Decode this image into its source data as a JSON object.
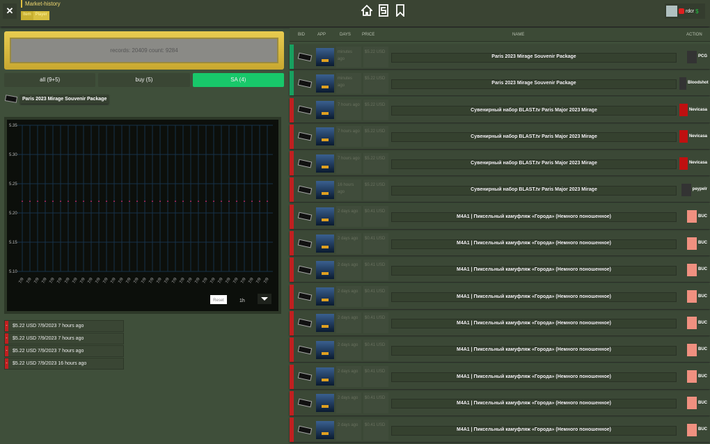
{
  "header": {
    "title": "Market-history",
    "subtabs": [
      "Item",
      "Player"
    ],
    "user": {
      "name": "rdcr",
      "currency": "$"
    },
    "colors": {
      "accent_gold": "#e0c040",
      "active_green": "#18c86a",
      "sell_red": "#c02020",
      "buy_green": "#18a060"
    }
  },
  "left": {
    "summary": "records: 20409 count: 9284",
    "tabs": [
      {
        "label": "all (9+5)"
      },
      {
        "label": "buy (5)"
      },
      {
        "label": "SA (4)"
      }
    ],
    "selected_item": "Paris 2023 Mirage Souvenir Package",
    "history": [
      "$5.22 USD 7/9/2023 7 hours ago",
      "$5.22 USD 7/9/2023 7 hours ago",
      "$5.22 USD 7/9/2023 7 hours ago",
      "$5.22 USD 7/9/2023 16 hours ago"
    ]
  },
  "chart_data": {
    "type": "line",
    "y_ticks": [
      "5.35",
      "5.30",
      "5.25",
      "5.20",
      "5.15",
      "5.10"
    ],
    "ylim": [
      5.1,
      5.35
    ],
    "grid": true,
    "x_count": 33,
    "values_constant": 5.22,
    "series": [
      {
        "values": [
          5.22,
          5.22,
          5.22,
          5.22,
          5.22,
          5.22,
          5.22,
          5.22,
          5.22,
          5.22,
          5.22,
          5.22,
          5.22,
          5.22,
          5.22,
          5.22,
          5.22,
          5.22,
          5.22,
          5.22,
          5.22,
          5.22,
          5.22,
          5.22,
          5.22,
          5.22,
          5.22,
          5.22,
          5.22,
          5.22,
          5.22,
          5.22,
          5.22
        ]
      }
    ],
    "controls": {
      "reset_label": "Reset",
      "range_label": "1h"
    }
  },
  "table": {
    "columns": [
      "BID",
      "APP",
      "DAYS",
      "PRICE",
      "NAME",
      "ACTION"
    ],
    "rows": [
      {
        "side": "buy",
        "days": "minutes ago",
        "price": "$5.22 USD",
        "name": "Paris 2023 Mirage Souvenir Package",
        "user": "PCG"
      },
      {
        "side": "buy",
        "days": "minutes ago",
        "price": "$5.22 USD",
        "name": "Paris 2023 Mirage Souvenir Package",
        "user": "Bloodshot"
      },
      {
        "side": "sell",
        "days": "7 hours ago",
        "price": "$5.22 USD",
        "name": "Сувенирный набор BLAST.tv Paris Major 2023 Mirage",
        "user": "Nevicasa"
      },
      {
        "side": "sell",
        "days": "7 hours ago",
        "price": "$5.22 USD",
        "name": "Сувенирный набор BLAST.tv Paris Major 2023 Mirage",
        "user": "Nevicasa"
      },
      {
        "side": "sell",
        "days": "7 hours ago",
        "price": "$5.22 USD",
        "name": "Сувенирный набор BLAST.tv Paris Major 2023 Mirage",
        "user": "Nevicasa"
      },
      {
        "side": "sell",
        "days": "16 hours ago",
        "price": "$5.22 USD",
        "name": "Сувенирный набор BLAST.tv Paris Major 2023 Mirage",
        "user": "peypelr"
      },
      {
        "side": "sell",
        "days": "2 days ago",
        "price": "$0.41 USD",
        "name": "M4A1 | Пиксельный камуфляж «Города» (Немного поношенное)",
        "user": "BUC"
      },
      {
        "side": "sell",
        "days": "2 days ago",
        "price": "$0.41 USD",
        "name": "M4A1 | Пиксельный камуфляж «Города» (Немного поношенное)",
        "user": "BUC"
      },
      {
        "side": "sell",
        "days": "2 days ago",
        "price": "$0.41 USD",
        "name": "M4A1 | Пиксельный камуфляж «Города» (Немного поношенное)",
        "user": "BUC"
      },
      {
        "side": "sell",
        "days": "2 days ago",
        "price": "$0.41 USD",
        "name": "M4A1 | Пиксельный камуфляж «Города» (Немного поношенное)",
        "user": "BUC"
      },
      {
        "side": "sell",
        "days": "2 days ago",
        "price": "$0.41 USD",
        "name": "M4A1 | Пиксельный камуфляж «Города» (Немного поношенное)",
        "user": "BUC"
      },
      {
        "side": "sell",
        "days": "2 days ago",
        "price": "$0.41 USD",
        "name": "M4A1 | Пиксельный камуфляж «Города» (Немного поношенное)",
        "user": "BUC"
      },
      {
        "side": "sell",
        "days": "2 days ago",
        "price": "$0.41 USD",
        "name": "M4A1 | Пиксельный камуфляж «Города» (Немного поношенное)",
        "user": "BUC"
      },
      {
        "side": "sell",
        "days": "2 days ago",
        "price": "$0.41 USD",
        "name": "M4A1 | Пиксельный камуфляж «Города» (Немного поношенное)",
        "user": "BUC"
      },
      {
        "side": "sell",
        "days": "2 days ago",
        "price": "$0.41 USD",
        "name": "M4A1 | Пиксельный камуфляж «Города» (Немного поношенное)",
        "user": "BUC"
      }
    ]
  }
}
